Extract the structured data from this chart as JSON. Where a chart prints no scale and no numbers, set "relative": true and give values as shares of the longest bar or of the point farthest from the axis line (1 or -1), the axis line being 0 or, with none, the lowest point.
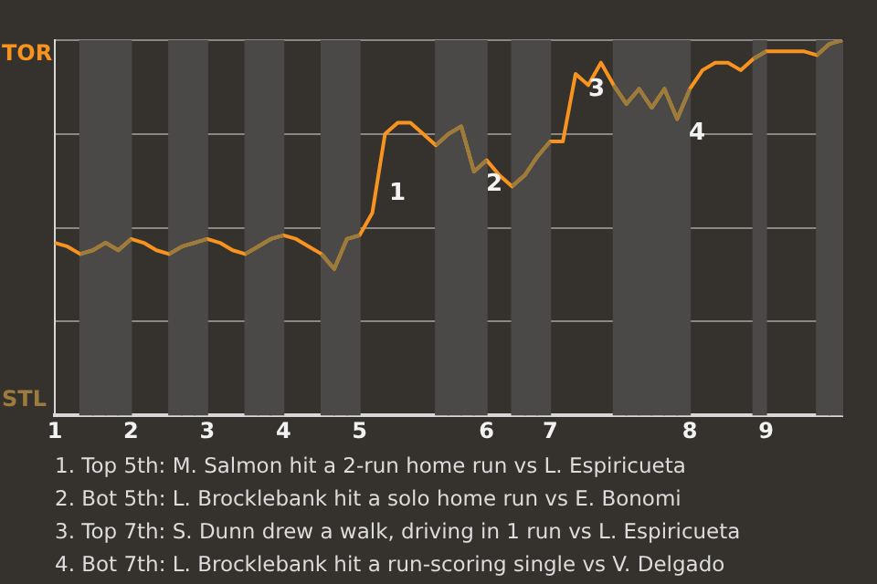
{
  "chart_data": {
    "type": "line",
    "categories": [
      "1",
      null,
      null,
      null,
      null,
      null,
      "2",
      null,
      null,
      null,
      null,
      null,
      "3",
      null,
      null,
      null,
      null,
      null,
      "4",
      null,
      null,
      null,
      null,
      null,
      "5",
      null,
      null,
      null,
      null,
      null,
      null,
      null,
      null,
      null,
      "6",
      null,
      null,
      null,
      null,
      "7",
      null,
      null,
      null,
      null,
      null,
      null,
      null,
      null,
      null,
      null,
      "8",
      null,
      null,
      null,
      null,
      null,
      "9",
      null,
      null,
      null,
      null,
      null,
      null
    ],
    "series": [
      {
        "color": "#f7931e",
        "values": [
          0.46,
          0.45,
          0.43,
          0.44,
          0.46,
          0.44,
          0.47,
          0.46,
          0.44,
          0.43,
          0.45,
          0.46,
          0.47,
          0.46,
          0.44,
          0.43,
          0.45,
          0.47,
          0.48,
          0.47,
          0.45,
          0.43,
          0.39,
          0.47,
          0.48,
          0.54,
          0.75,
          0.78,
          0.78,
          0.75,
          0.72,
          0.75,
          0.77,
          0.65,
          0.68,
          0.64,
          0.61,
          0.64,
          0.69,
          0.73,
          0.73,
          0.91,
          0.88,
          0.94,
          0.88,
          0.83,
          0.87,
          0.82,
          0.87,
          0.79,
          0.87,
          0.92,
          0.94,
          0.94,
          0.92,
          0.95,
          0.97,
          0.97,
          0.97,
          0.97,
          0.96,
          0.99,
          1.0
        ]
      },
      {
        "color": "#9c7c3c",
        "values": [
          null,
          null,
          0.43,
          0.44,
          0.46,
          0.44,
          0.47,
          null,
          null,
          0.43,
          0.45,
          0.46,
          0.47,
          null,
          null,
          0.43,
          0.45,
          0.47,
          0.48,
          null,
          null,
          0.43,
          0.39,
          0.47,
          0.48,
          null,
          null,
          null,
          null,
          null,
          0.72,
          0.75,
          0.77,
          0.65,
          0.68,
          null,
          0.61,
          0.64,
          0.69,
          0.73,
          null,
          null,
          null,
          null,
          0.88,
          0.83,
          0.87,
          0.82,
          0.87,
          0.79,
          0.87,
          null,
          null,
          null,
          null,
          0.95,
          0.97,
          null,
          null,
          null,
          0.96,
          0.99,
          1.0
        ]
      }
    ],
    "relative": true,
    "grid": "y",
    "marker": "none",
    "annotations": [
      "TOR",
      "STL",
      "1",
      "2",
      "3",
      "4",
      "1. Top 5th: M. Salmon hit a 2-run home run vs L. Espiricueta",
      "2. Bot 5th: L. Brocklebank hit a solo home run vs E. Bonomi",
      "3. Top 7th: S. Dunn drew a walk, driving in 1 run vs L. Espiricueta",
      "4. Bot 7th: L. Brocklebank hit a run-scoring single vs V. Delgado"
    ]
  }
}
